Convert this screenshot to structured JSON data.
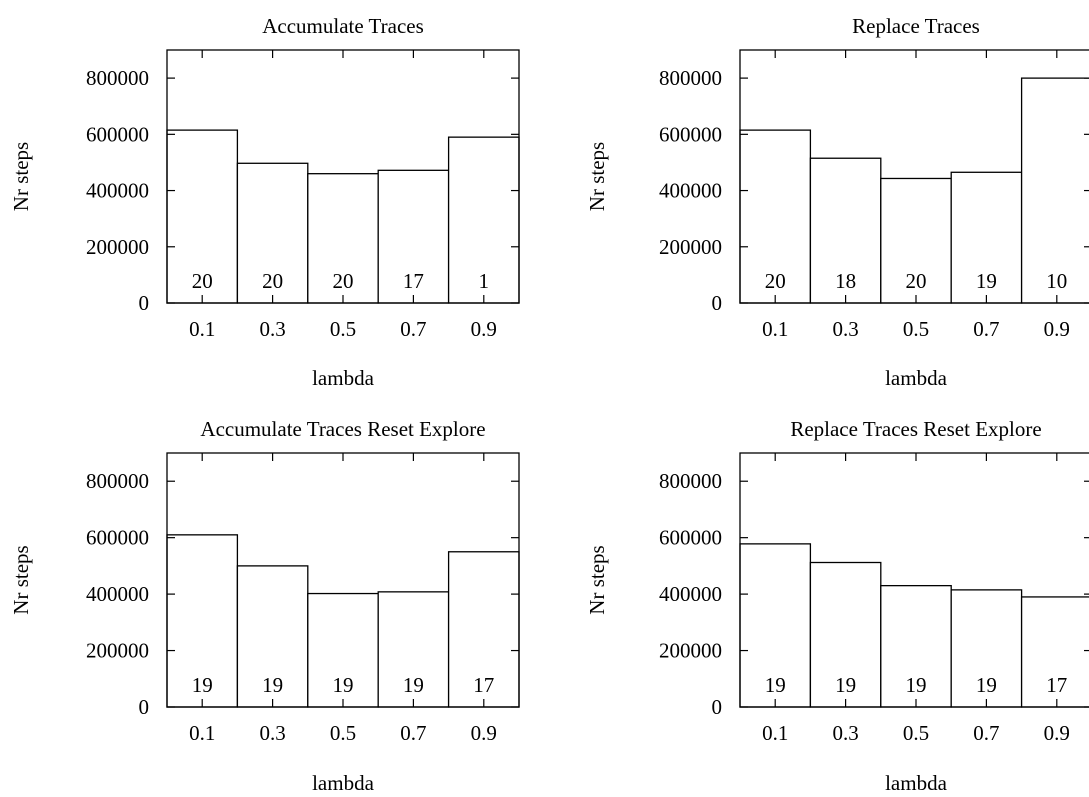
{
  "chart_data": [
    {
      "type": "bar",
      "title": "Accumulate Traces",
      "xlabel": "lambda",
      "ylabel": "Nr steps",
      "categories": [
        "0.1",
        "0.3",
        "0.5",
        "0.7",
        "0.9"
      ],
      "values": [
        615000,
        497000,
        460000,
        472000,
        590000
      ],
      "bar_labels": [
        "20",
        "20",
        "20",
        "17",
        "1"
      ],
      "yticks": [
        "0",
        "200000",
        "400000",
        "600000",
        "800000"
      ],
      "ylim": [
        0,
        900000
      ],
      "grid": false
    },
    {
      "type": "bar",
      "title": "Replace Traces",
      "xlabel": "lambda",
      "ylabel": "Nr steps",
      "categories": [
        "0.1",
        "0.3",
        "0.5",
        "0.7",
        "0.9"
      ],
      "values": [
        615000,
        515000,
        443000,
        465000,
        800000
      ],
      "bar_labels": [
        "20",
        "18",
        "20",
        "19",
        "10"
      ],
      "yticks": [
        "0",
        "200000",
        "400000",
        "600000",
        "800000"
      ],
      "ylim": [
        0,
        900000
      ],
      "grid": false
    },
    {
      "type": "bar",
      "title": "Accumulate Traces Reset Explore",
      "xlabel": "lambda",
      "ylabel": "Nr steps",
      "categories": [
        "0.1",
        "0.3",
        "0.5",
        "0.7",
        "0.9"
      ],
      "values": [
        610000,
        500000,
        402000,
        408000,
        550000
      ],
      "bar_labels": [
        "19",
        "19",
        "19",
        "19",
        "17"
      ],
      "yticks": [
        "0",
        "200000",
        "400000",
        "600000",
        "800000"
      ],
      "ylim": [
        0,
        900000
      ],
      "grid": false
    },
    {
      "type": "bar",
      "title": "Replace Traces Reset Explore",
      "xlabel": "lambda",
      "ylabel": "Nr steps",
      "categories": [
        "0.1",
        "0.3",
        "0.5",
        "0.7",
        "0.9"
      ],
      "values": [
        578000,
        512000,
        430000,
        415000,
        390000
      ],
      "bar_labels": [
        "19",
        "19",
        "19",
        "19",
        "17"
      ],
      "yticks": [
        "0",
        "200000",
        "400000",
        "600000",
        "800000"
      ],
      "ylim": [
        0,
        900000
      ],
      "grid": false
    }
  ]
}
